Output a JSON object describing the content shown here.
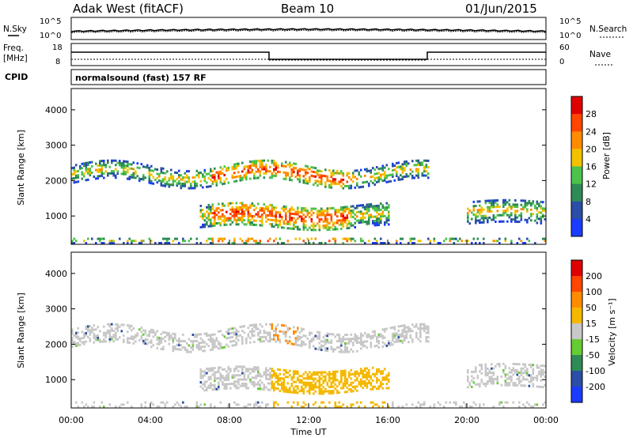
{
  "header": {
    "station": "Adak West (fitACF)",
    "beam": "Beam 10",
    "date": "01/Jun/2015"
  },
  "noise_panel": {
    "left_label": "N.Sky",
    "right_label": "N.Search",
    "left_ticks": [
      "10^5",
      "10^0"
    ],
    "right_ticks": [
      "10^5",
      "10^0"
    ]
  },
  "freq_panel": {
    "left_label_top": "Freq.",
    "left_label_unit": "[MHz]",
    "left_ticks": [
      "18",
      "8"
    ],
    "right_label": "Nave",
    "right_ticks": [
      "60",
      "0"
    ],
    "cpid_label": "CPID",
    "cpid_text": "normalsound (fast) 157 RF"
  },
  "chart_data": [
    {
      "type": "heatmap",
      "title": "",
      "ylabel": "Slant Range [km]",
      "xlabel": "",
      "ylim": [
        200,
        4600
      ],
      "y_ticks": [
        "1000",
        "2000",
        "3000",
        "4000"
      ],
      "colorbar_label": "Power [dB]",
      "colorbar_ticks": [
        "4",
        "8",
        "12",
        "16",
        "20",
        "24",
        "28"
      ],
      "colorbar_colors": [
        "#1a3cff",
        "#2b4ea6",
        "#2e8b57",
        "#4cc24c",
        "#f2c200",
        "#ff8c00",
        "#ff4500",
        "#e00000"
      ],
      "echo_bands": [
        {
          "name": "upper",
          "start_hour": 0.0,
          "end_hour": 18.0,
          "range_km": [
            1900,
            2400
          ]
        },
        {
          "name": "lower",
          "start_hour": 6.5,
          "end_hour": 16.0,
          "range_km": [
            650,
            1300
          ]
        },
        {
          "name": "late",
          "start_hour": 20.0,
          "end_hour": 24.0,
          "range_km": [
            750,
            1400
          ]
        }
      ]
    },
    {
      "type": "heatmap",
      "title": "",
      "ylabel": "Slant Range [km]",
      "xlabel": "Time UT",
      "ylim": [
        200,
        4600
      ],
      "y_ticks": [
        "1000",
        "2000",
        "3000",
        "4000"
      ],
      "x_ticks": [
        "00:00",
        "04:00",
        "08:00",
        "12:00",
        "16:00",
        "20:00",
        "00:00"
      ],
      "colorbar_label": "Velocity [m s⁻¹]",
      "colorbar_ticks": [
        "200",
        "100",
        "50",
        "15",
        "-15",
        "-50",
        "-100",
        "-200"
      ],
      "colorbar_colors": [
        "#1a3cff",
        "#2b4ea6",
        "#2e8b57",
        "#66cc33",
        "#c8c8c8",
        "#f5b800",
        "#ff8c00",
        "#ff4500",
        "#e00000"
      ]
    }
  ]
}
